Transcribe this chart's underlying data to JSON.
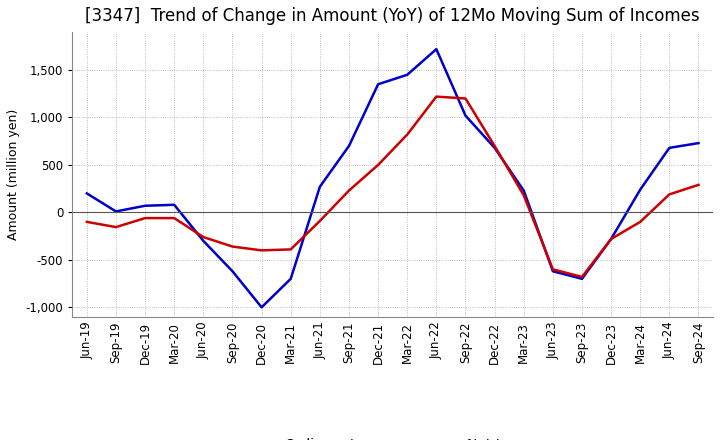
{
  "title": "[3347]  Trend of Change in Amount (YoY) of 12Mo Moving Sum of Incomes",
  "ylabel": "Amount (million yen)",
  "x_labels": [
    "Jun-19",
    "Sep-19",
    "Dec-19",
    "Mar-20",
    "Jun-20",
    "Sep-20",
    "Dec-20",
    "Mar-21",
    "Jun-21",
    "Sep-21",
    "Dec-21",
    "Mar-22",
    "Jun-22",
    "Sep-22",
    "Dec-22",
    "Mar-23",
    "Jun-23",
    "Sep-23",
    "Dec-23",
    "Mar-24",
    "Jun-24",
    "Sep-24"
  ],
  "ordinary_income": [
    200,
    10,
    70,
    80,
    -300,
    -620,
    -1000,
    -700,
    270,
    700,
    1350,
    1450,
    1720,
    1020,
    680,
    230,
    -620,
    -700,
    -280,
    240,
    680,
    730
  ],
  "net_income": [
    -100,
    -155,
    -60,
    -60,
    -260,
    -360,
    -400,
    -390,
    -90,
    230,
    500,
    820,
    1220,
    1200,
    700,
    180,
    -600,
    -680,
    -280,
    -100,
    190,
    290
  ],
  "ordinary_color": "#0000cc",
  "net_color": "#cc0000",
  "background_color": "#ffffff",
  "grid_color": "#aaaaaa",
  "ylim": [
    -1100,
    1900
  ],
  "yticks": [
    -1000,
    -500,
    0,
    500,
    1000,
    1500
  ],
  "title_fontsize": 12,
  "axis_fontsize": 9,
  "tick_fontsize": 8.5,
  "legend_fontsize": 10
}
